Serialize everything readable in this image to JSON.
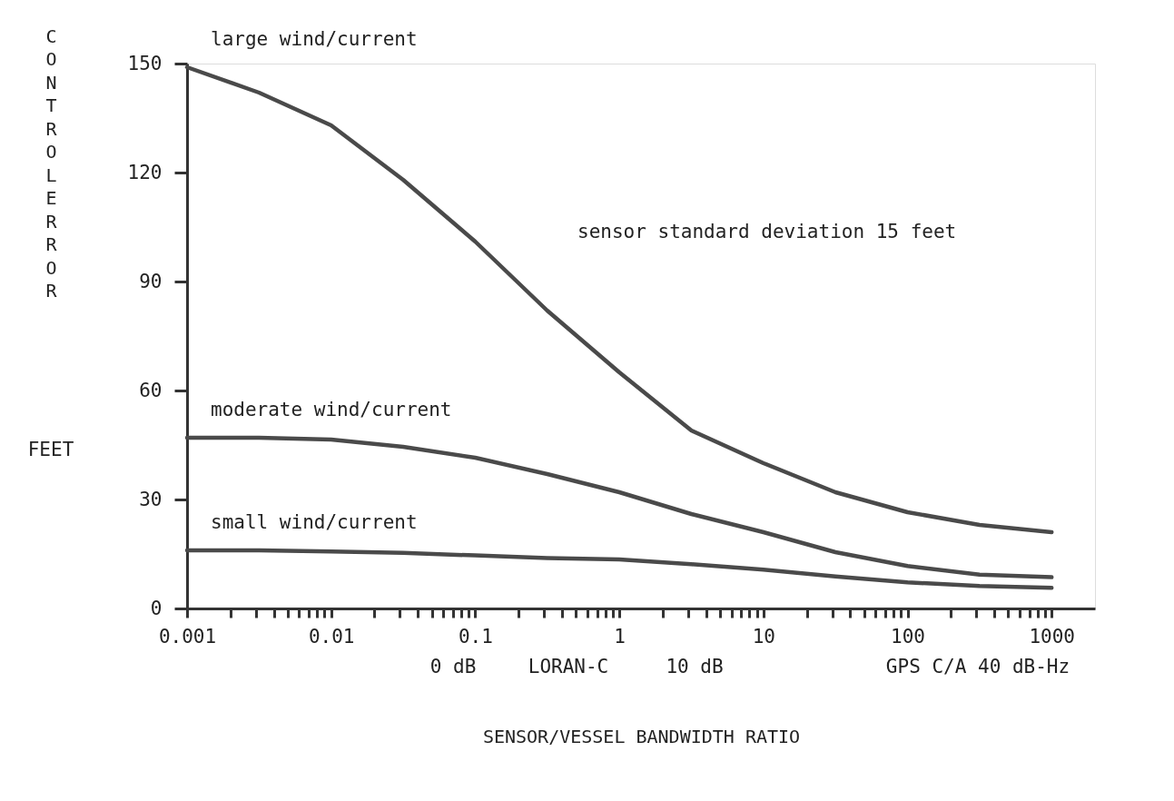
{
  "chart_data": {
    "type": "line",
    "ylabel": "CONTROL ERROR",
    "xlabel": "SENSOR/VESSEL BANDWIDTH RATIO",
    "annotations": [
      "sensor standard deviation 15 feet",
      "FEET",
      "LORAN-C",
      "0 dB",
      "10 dB",
      "GPS C/A 40 dB-Hz"
    ],
    "x": [
      0.001,
      0.00316,
      0.01,
      0.0316,
      0.1,
      0.316,
      1,
      3.16,
      10,
      31.6,
      100,
      316,
      1000
    ],
    "series": [
      {
        "name": "large wind/current",
        "color": "#4a4a4a",
        "values": [
          149,
          142,
          133,
          118,
          101,
          82,
          65,
          49,
          40,
          32,
          26.5,
          23,
          21
        ]
      },
      {
        "name": "moderate wind/current",
        "color": "#4a4a4a",
        "values": [
          47,
          47,
          46.5,
          44.5,
          41.5,
          37,
          32,
          26,
          21,
          15.5,
          11.7,
          9.3,
          8.6
        ]
      },
      {
        "name": "small wind/current",
        "color": "#4a4a4a",
        "values": [
          16,
          16,
          15.7,
          15.3,
          14.6,
          13.9,
          13.5,
          12.2,
          10.7,
          8.8,
          7.2,
          6.2,
          5.7
        ]
      }
    ],
    "log": "x",
    "xlim": [
      0.001,
      2000
    ],
    "xticks": [
      {
        "value": 0.001,
        "label": "0.001"
      },
      {
        "value": 0.002,
        "label": null
      },
      {
        "value": 0.003,
        "label": null
      },
      {
        "value": 0.004,
        "label": null
      },
      {
        "value": 0.005,
        "label": null
      },
      {
        "value": 0.006,
        "label": null
      },
      {
        "value": 0.007,
        "label": null
      },
      {
        "value": 0.008,
        "label": null
      },
      {
        "value": 0.009,
        "label": null
      },
      {
        "value": 0.01,
        "label": "0.01"
      },
      {
        "value": 0.02,
        "label": null
      },
      {
        "value": 0.03,
        "label": null
      },
      {
        "value": 0.04,
        "label": null
      },
      {
        "value": 0.05,
        "label": null
      },
      {
        "value": 0.06,
        "label": null
      },
      {
        "value": 0.07,
        "label": null
      },
      {
        "value": 0.08,
        "label": null
      },
      {
        "value": 0.09,
        "label": null
      },
      {
        "value": 0.1,
        "label": "0.1"
      },
      {
        "value": 0.2,
        "label": null
      },
      {
        "value": 0.3,
        "label": null
      },
      {
        "value": 0.4,
        "label": null
      },
      {
        "value": 0.5,
        "label": null
      },
      {
        "value": 0.6,
        "label": null
      },
      {
        "value": 0.7,
        "label": null
      },
      {
        "value": 0.8,
        "label": null
      },
      {
        "value": 0.9,
        "label": null
      },
      {
        "value": 1,
        "label": "1"
      },
      {
        "value": 2,
        "label": null
      },
      {
        "value": 3,
        "label": null
      },
      {
        "value": 4,
        "label": null
      },
      {
        "value": 5,
        "label": null
      },
      {
        "value": 6,
        "label": null
      },
      {
        "value": 7,
        "label": null
      },
      {
        "value": 8,
        "label": null
      },
      {
        "value": 9,
        "label": null
      },
      {
        "value": 10,
        "label": "10"
      },
      {
        "value": 20,
        "label": null
      },
      {
        "value": 30,
        "label": null
      },
      {
        "value": 40,
        "label": null
      },
      {
        "value": 50,
        "label": null
      },
      {
        "value": 60,
        "label": null
      },
      {
        "value": 70,
        "label": null
      },
      {
        "value": 80,
        "label": null
      },
      {
        "value": 90,
        "label": null
      },
      {
        "value": 100,
        "label": "100"
      },
      {
        "value": 200,
        "label": null
      },
      {
        "value": 300,
        "label": null
      },
      {
        "value": 400,
        "label": null
      },
      {
        "value": 500,
        "label": null
      },
      {
        "value": 600,
        "label": null
      },
      {
        "value": 700,
        "label": null
      },
      {
        "value": 800,
        "label": null
      },
      {
        "value": 900,
        "label": null
      },
      {
        "value": 1000,
        "label": "1000"
      }
    ],
    "ylim": [
      0,
      150
    ],
    "yticks": [
      0,
      30,
      60,
      90,
      120,
      150
    ],
    "grid": false,
    "marker": "none",
    "line_style": "solid"
  }
}
